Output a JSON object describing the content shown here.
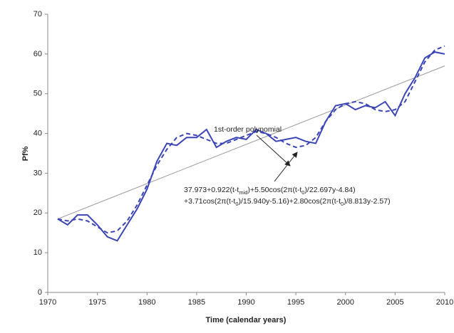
{
  "chart_data": {
    "type": "line",
    "x_label": "Time (calendar years)",
    "y_label": "Pf%",
    "x": [
      1971,
      1972,
      1973,
      1974,
      1975,
      1976,
      1977,
      1978,
      1979,
      1980,
      1981,
      1982,
      1983,
      1984,
      1985,
      1986,
      1987,
      1988,
      1989,
      1990,
      1991,
      1992,
      1993,
      1994,
      1995,
      1996,
      1997,
      1998,
      1999,
      2000,
      2001,
      2002,
      2003,
      2004,
      2005,
      2006,
      2007,
      2008,
      2009,
      2010
    ],
    "series": [
      {
        "color": "#3b45b5",
        "dash": false,
        "values": [
          18.5,
          17,
          19.5,
          19.5,
          17,
          14,
          13,
          17,
          21,
          26,
          33,
          37.5,
          37,
          39,
          39,
          41,
          36.5,
          38,
          39,
          38.5,
          41,
          40,
          38,
          38.5,
          39,
          38,
          37.5,
          43,
          47,
          47.5,
          46,
          47,
          46.5,
          48,
          44.5,
          50,
          54,
          59,
          60.5,
          60
        ]
      },
      {
        "color": "#3b45b5",
        "dash": true,
        "values": [
          18.5,
          18,
          18.5,
          18,
          16.5,
          15,
          15.5,
          18,
          22,
          27,
          32,
          36,
          39,
          40,
          39.5,
          38.5,
          37.5,
          37.5,
          38.5,
          39.5,
          40.5,
          40,
          39,
          37.5,
          36.5,
          37,
          39,
          43,
          46,
          47.5,
          48,
          47.5,
          46,
          45.5,
          46,
          48,
          53,
          58,
          61,
          62
        ]
      },
      {
        "name": "1st-order polynomial",
        "color": "#9a9a9a",
        "dash": false,
        "x": [
          1971,
          2010
        ],
        "values": [
          18.5,
          57
        ]
      }
    ],
    "formula_lines": [
      [
        {
          "text": "37.973+0.922(t-t"
        },
        {
          "sub": "mid"
        },
        {
          "text": ")+5.50cos(2π(t-t"
        },
        {
          "sub": "0"
        },
        {
          "text": ")/22.697y-4.84)"
        }
      ],
      [
        {
          "text": "+3.71cos(2π(t-t"
        },
        {
          "sub": "0"
        },
        {
          "text": ")/15.940y-5.16)+2.80cos(2π(t-t"
        },
        {
          "sub": "0"
        },
        {
          "text": ")/8.813y-2.57)"
        }
      ]
    ],
    "xlim": [
      1970,
      2010
    ],
    "xticks": [
      1970,
      1975,
      1980,
      1985,
      1990,
      1995,
      2000,
      2005,
      2010
    ],
    "ylim": [
      0,
      70
    ],
    "yticks": [
      0,
      10,
      20,
      30,
      40,
      50,
      60,
      70
    ]
  }
}
